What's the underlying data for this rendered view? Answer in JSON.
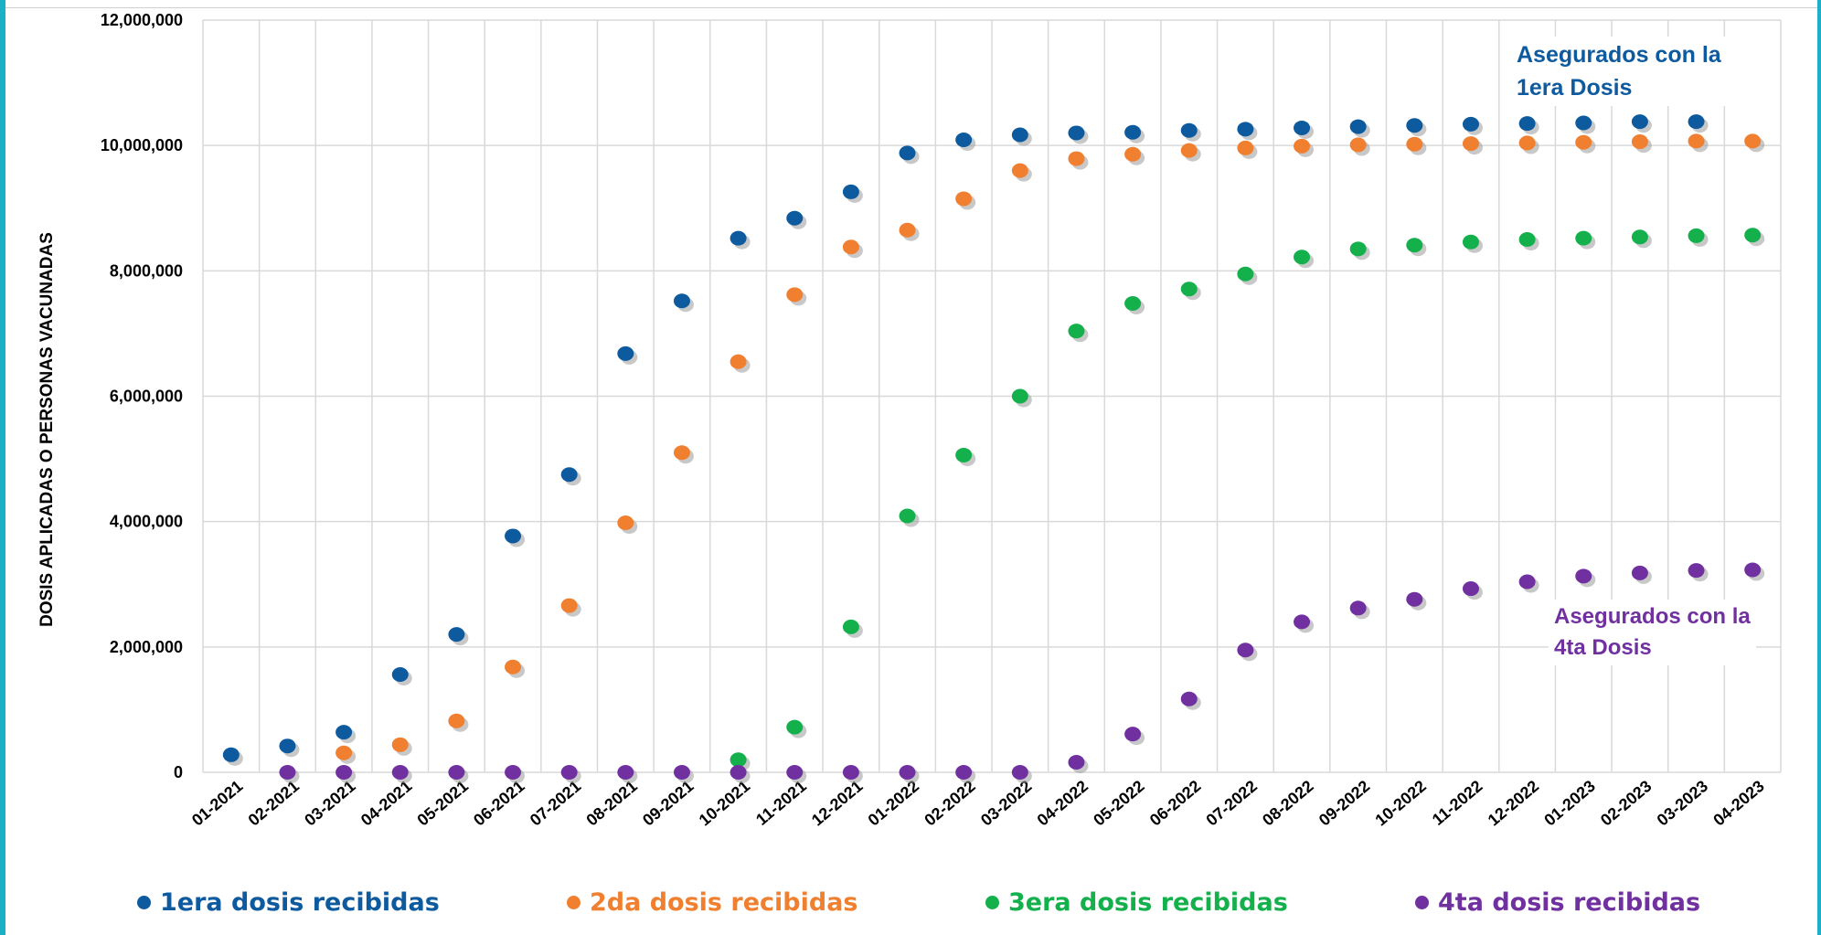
{
  "chart_data": {
    "type": "scatter",
    "ylabel": "DOSIS APLICADAS O PERSONAS VACUNADAS",
    "ylim": [
      0,
      12000000
    ],
    "yticks": [
      "0",
      "2,000,000",
      "4,000,000",
      "6,000,000",
      "8,000,000",
      "10,000,000",
      "12,000,000"
    ],
    "ytick_values": [
      0,
      2000000,
      4000000,
      6000000,
      8000000,
      10000000,
      12000000
    ],
    "categories": [
      "01-2021",
      "02-2021",
      "03-2021",
      "04-2021",
      "05-2021",
      "06-2021",
      "07-2021",
      "08-2021",
      "09-2021",
      "10-2021",
      "11-2021",
      "12-2021",
      "01-2022",
      "02-2022",
      "03-2022",
      "04-2022",
      "05-2022",
      "06-2022",
      "07-2022",
      "08-2022",
      "09-2022",
      "10-2022",
      "11-2022",
      "12-2022",
      "01-2023",
      "02-2023",
      "03-2023",
      "04-2023"
    ],
    "grid": true,
    "legend_position": "bottom",
    "series": [
      {
        "name": "1era dosis recibidas",
        "color": "#0d5a9e",
        "values": [
          280000,
          420000,
          640000,
          1560000,
          2200000,
          3770000,
          4750000,
          6680000,
          7520000,
          8520000,
          8840000,
          9260000,
          9880000,
          10090000,
          10170000,
          10200000,
          10210000,
          10240000,
          10260000,
          10280000,
          10300000,
          10320000,
          10340000,
          10350000,
          10360000,
          10380000,
          10380000,
          null
        ]
      },
      {
        "name": "2da dosis recibidas",
        "color": "#f08030",
        "values": [
          null,
          null,
          310000,
          440000,
          820000,
          1680000,
          2660000,
          3980000,
          5100000,
          6550000,
          7620000,
          8380000,
          8650000,
          9150000,
          9600000,
          9790000,
          9860000,
          9920000,
          9960000,
          9990000,
          10010000,
          10020000,
          10030000,
          10040000,
          10050000,
          10060000,
          10070000,
          10070000
        ]
      },
      {
        "name": "3era dosis recibidas",
        "color": "#13b04c",
        "values": [
          null,
          null,
          null,
          null,
          null,
          null,
          null,
          null,
          null,
          200000,
          720000,
          2320000,
          4090000,
          5060000,
          6000000,
          7040000,
          7480000,
          7710000,
          7950000,
          8220000,
          8350000,
          8410000,
          8460000,
          8500000,
          8520000,
          8540000,
          8560000,
          8570000
        ]
      },
      {
        "name": "4ta dosis recibidas",
        "color": "#7030a0",
        "values": [
          null,
          0,
          0,
          0,
          0,
          0,
          0,
          0,
          0,
          0,
          0,
          0,
          0,
          0,
          0,
          160000,
          610000,
          1170000,
          1950000,
          2400000,
          2620000,
          2760000,
          2930000,
          3040000,
          3130000,
          3180000,
          3220000,
          3230000
        ]
      }
    ],
    "annotations": [
      {
        "text_line1": "Asegurados con la",
        "text_line2": "1era Dosis",
        "color": "#0d5a9e"
      },
      {
        "text_line1": "Asegurados con la",
        "text_line2": "4ta Dosis",
        "color": "#7030a0"
      }
    ]
  }
}
